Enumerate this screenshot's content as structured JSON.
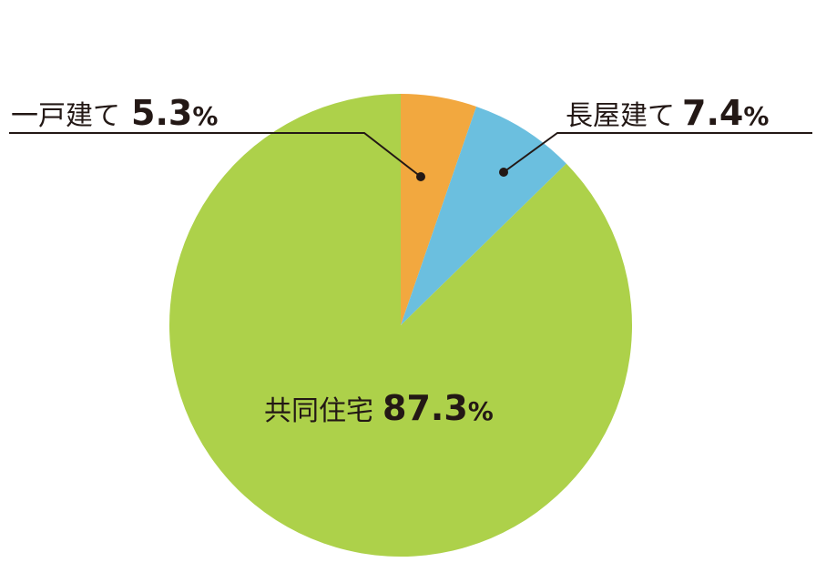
{
  "chart_data": {
    "type": "pie",
    "title": "",
    "start": "12 o'clock",
    "direction": "clockwise",
    "slices": [
      {
        "label": "一戸建て",
        "value": 5.3,
        "value_text": "5.3",
        "unit": "%",
        "color": "#F2A83F"
      },
      {
        "label": "長屋建て",
        "value": 7.4,
        "value_text": "7.4",
        "unit": "%",
        "color": "#6BBFDF"
      },
      {
        "label": "共同住宅",
        "value": 87.3,
        "value_text": "87.3",
        "unit": "%",
        "color": "#ADD14A"
      }
    ],
    "legend": "none"
  },
  "colors": {
    "label_text": "#231815",
    "leader_line": "#231815"
  }
}
